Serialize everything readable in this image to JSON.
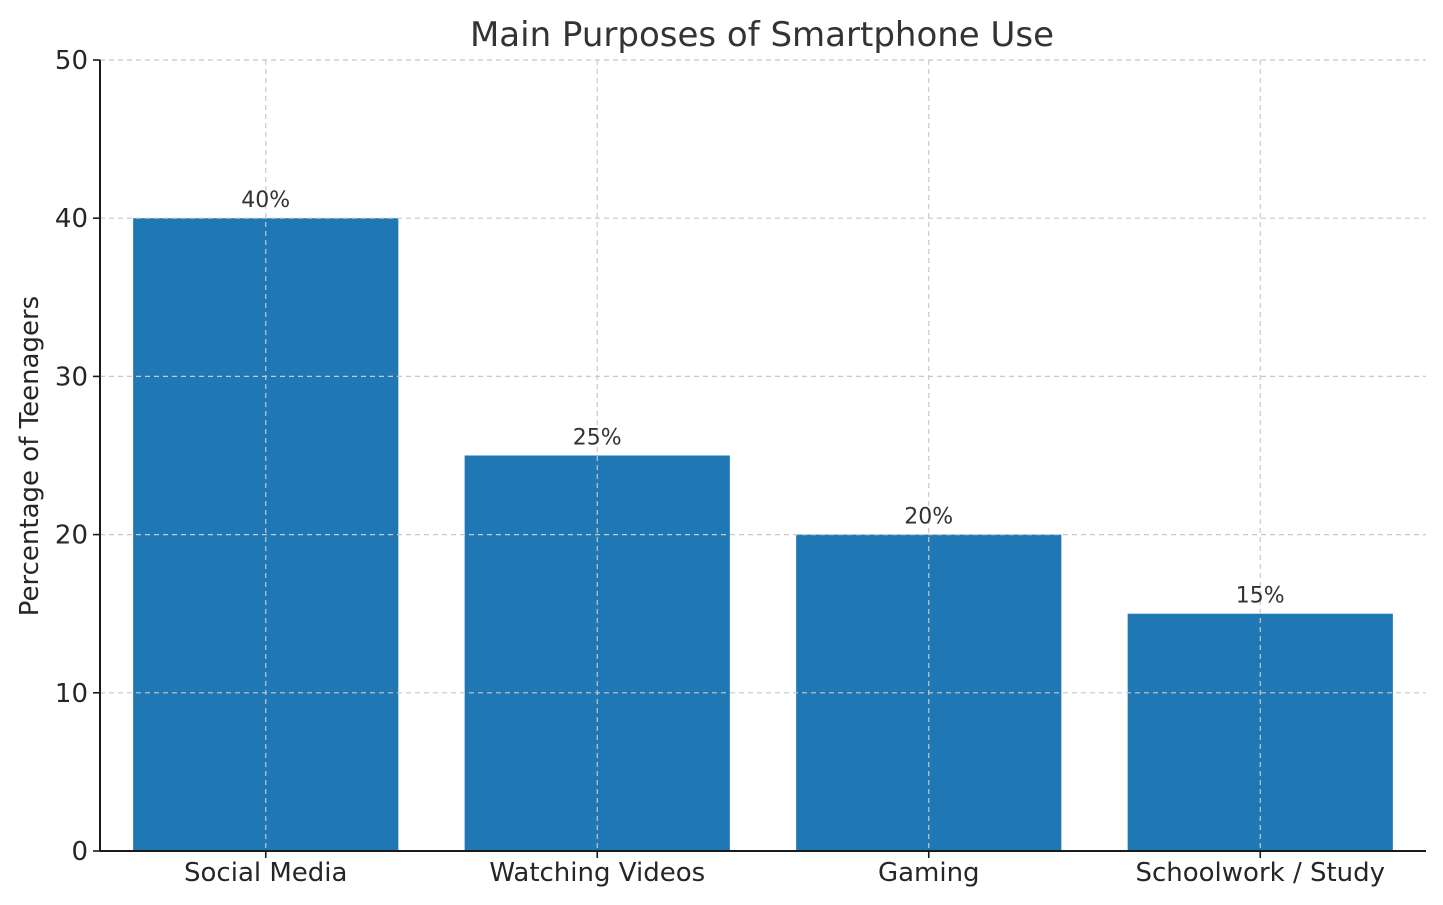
{
  "chart_data": {
    "type": "bar",
    "title": "Main Purposes of Smartphone Use",
    "xlabel": "",
    "ylabel": "Percentage of Teenagers",
    "categories": [
      "Social Media",
      "Watching Videos",
      "Gaming",
      "Schoolwork / Study"
    ],
    "values": [
      40,
      25,
      20,
      15
    ],
    "data_labels": [
      "40%",
      "25%",
      "20%",
      "15%"
    ],
    "ylim": [
      0,
      50
    ],
    "yticks": [
      0,
      10,
      20,
      30,
      40,
      50
    ],
    "grid": true,
    "legend": "none",
    "bar_color": "#1f77b4"
  }
}
